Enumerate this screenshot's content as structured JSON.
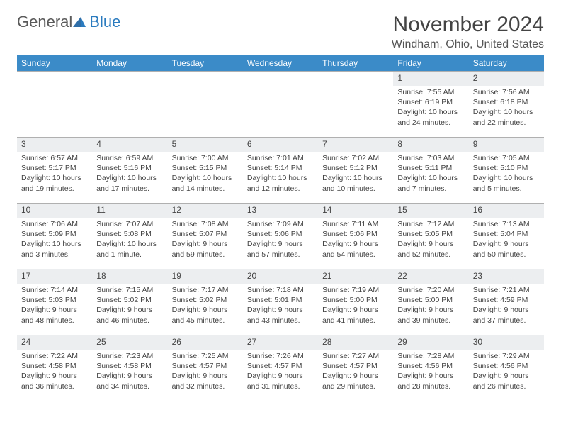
{
  "brand": {
    "name_left": "General",
    "name_right": "Blue"
  },
  "title": "November 2024",
  "location": "Windham, Ohio, United States",
  "colors": {
    "header_bg": "#3b8bc8",
    "header_text": "#ffffff",
    "daynum_bg": "#eceef0",
    "body_text": "#444444",
    "rule": "#b0b0b0",
    "logo_gray": "#5a5a5a",
    "logo_blue": "#2b7bbf"
  },
  "day_headers": [
    "Sunday",
    "Monday",
    "Tuesday",
    "Wednesday",
    "Thursday",
    "Friday",
    "Saturday"
  ],
  "weeks": [
    [
      null,
      null,
      null,
      null,
      null,
      {
        "n": "1",
        "sunrise": "Sunrise: 7:55 AM",
        "sunset": "Sunset: 6:19 PM",
        "day1": "Daylight: 10 hours",
        "day2": "and 24 minutes."
      },
      {
        "n": "2",
        "sunrise": "Sunrise: 7:56 AM",
        "sunset": "Sunset: 6:18 PM",
        "day1": "Daylight: 10 hours",
        "day2": "and 22 minutes."
      }
    ],
    [
      {
        "n": "3",
        "sunrise": "Sunrise: 6:57 AM",
        "sunset": "Sunset: 5:17 PM",
        "day1": "Daylight: 10 hours",
        "day2": "and 19 minutes."
      },
      {
        "n": "4",
        "sunrise": "Sunrise: 6:59 AM",
        "sunset": "Sunset: 5:16 PM",
        "day1": "Daylight: 10 hours",
        "day2": "and 17 minutes."
      },
      {
        "n": "5",
        "sunrise": "Sunrise: 7:00 AM",
        "sunset": "Sunset: 5:15 PM",
        "day1": "Daylight: 10 hours",
        "day2": "and 14 minutes."
      },
      {
        "n": "6",
        "sunrise": "Sunrise: 7:01 AM",
        "sunset": "Sunset: 5:14 PM",
        "day1": "Daylight: 10 hours",
        "day2": "and 12 minutes."
      },
      {
        "n": "7",
        "sunrise": "Sunrise: 7:02 AM",
        "sunset": "Sunset: 5:12 PM",
        "day1": "Daylight: 10 hours",
        "day2": "and 10 minutes."
      },
      {
        "n": "8",
        "sunrise": "Sunrise: 7:03 AM",
        "sunset": "Sunset: 5:11 PM",
        "day1": "Daylight: 10 hours",
        "day2": "and 7 minutes."
      },
      {
        "n": "9",
        "sunrise": "Sunrise: 7:05 AM",
        "sunset": "Sunset: 5:10 PM",
        "day1": "Daylight: 10 hours",
        "day2": "and 5 minutes."
      }
    ],
    [
      {
        "n": "10",
        "sunrise": "Sunrise: 7:06 AM",
        "sunset": "Sunset: 5:09 PM",
        "day1": "Daylight: 10 hours",
        "day2": "and 3 minutes."
      },
      {
        "n": "11",
        "sunrise": "Sunrise: 7:07 AM",
        "sunset": "Sunset: 5:08 PM",
        "day1": "Daylight: 10 hours",
        "day2": "and 1 minute."
      },
      {
        "n": "12",
        "sunrise": "Sunrise: 7:08 AM",
        "sunset": "Sunset: 5:07 PM",
        "day1": "Daylight: 9 hours",
        "day2": "and 59 minutes."
      },
      {
        "n": "13",
        "sunrise": "Sunrise: 7:09 AM",
        "sunset": "Sunset: 5:06 PM",
        "day1": "Daylight: 9 hours",
        "day2": "and 57 minutes."
      },
      {
        "n": "14",
        "sunrise": "Sunrise: 7:11 AM",
        "sunset": "Sunset: 5:06 PM",
        "day1": "Daylight: 9 hours",
        "day2": "and 54 minutes."
      },
      {
        "n": "15",
        "sunrise": "Sunrise: 7:12 AM",
        "sunset": "Sunset: 5:05 PM",
        "day1": "Daylight: 9 hours",
        "day2": "and 52 minutes."
      },
      {
        "n": "16",
        "sunrise": "Sunrise: 7:13 AM",
        "sunset": "Sunset: 5:04 PM",
        "day1": "Daylight: 9 hours",
        "day2": "and 50 minutes."
      }
    ],
    [
      {
        "n": "17",
        "sunrise": "Sunrise: 7:14 AM",
        "sunset": "Sunset: 5:03 PM",
        "day1": "Daylight: 9 hours",
        "day2": "and 48 minutes."
      },
      {
        "n": "18",
        "sunrise": "Sunrise: 7:15 AM",
        "sunset": "Sunset: 5:02 PM",
        "day1": "Daylight: 9 hours",
        "day2": "and 46 minutes."
      },
      {
        "n": "19",
        "sunrise": "Sunrise: 7:17 AM",
        "sunset": "Sunset: 5:02 PM",
        "day1": "Daylight: 9 hours",
        "day2": "and 45 minutes."
      },
      {
        "n": "20",
        "sunrise": "Sunrise: 7:18 AM",
        "sunset": "Sunset: 5:01 PM",
        "day1": "Daylight: 9 hours",
        "day2": "and 43 minutes."
      },
      {
        "n": "21",
        "sunrise": "Sunrise: 7:19 AM",
        "sunset": "Sunset: 5:00 PM",
        "day1": "Daylight: 9 hours",
        "day2": "and 41 minutes."
      },
      {
        "n": "22",
        "sunrise": "Sunrise: 7:20 AM",
        "sunset": "Sunset: 5:00 PM",
        "day1": "Daylight: 9 hours",
        "day2": "and 39 minutes."
      },
      {
        "n": "23",
        "sunrise": "Sunrise: 7:21 AM",
        "sunset": "Sunset: 4:59 PM",
        "day1": "Daylight: 9 hours",
        "day2": "and 37 minutes."
      }
    ],
    [
      {
        "n": "24",
        "sunrise": "Sunrise: 7:22 AM",
        "sunset": "Sunset: 4:58 PM",
        "day1": "Daylight: 9 hours",
        "day2": "and 36 minutes."
      },
      {
        "n": "25",
        "sunrise": "Sunrise: 7:23 AM",
        "sunset": "Sunset: 4:58 PM",
        "day1": "Daylight: 9 hours",
        "day2": "and 34 minutes."
      },
      {
        "n": "26",
        "sunrise": "Sunrise: 7:25 AM",
        "sunset": "Sunset: 4:57 PM",
        "day1": "Daylight: 9 hours",
        "day2": "and 32 minutes."
      },
      {
        "n": "27",
        "sunrise": "Sunrise: 7:26 AM",
        "sunset": "Sunset: 4:57 PM",
        "day1": "Daylight: 9 hours",
        "day2": "and 31 minutes."
      },
      {
        "n": "28",
        "sunrise": "Sunrise: 7:27 AM",
        "sunset": "Sunset: 4:57 PM",
        "day1": "Daylight: 9 hours",
        "day2": "and 29 minutes."
      },
      {
        "n": "29",
        "sunrise": "Sunrise: 7:28 AM",
        "sunset": "Sunset: 4:56 PM",
        "day1": "Daylight: 9 hours",
        "day2": "and 28 minutes."
      },
      {
        "n": "30",
        "sunrise": "Sunrise: 7:29 AM",
        "sunset": "Sunset: 4:56 PM",
        "day1": "Daylight: 9 hours",
        "day2": "and 26 minutes."
      }
    ]
  ]
}
